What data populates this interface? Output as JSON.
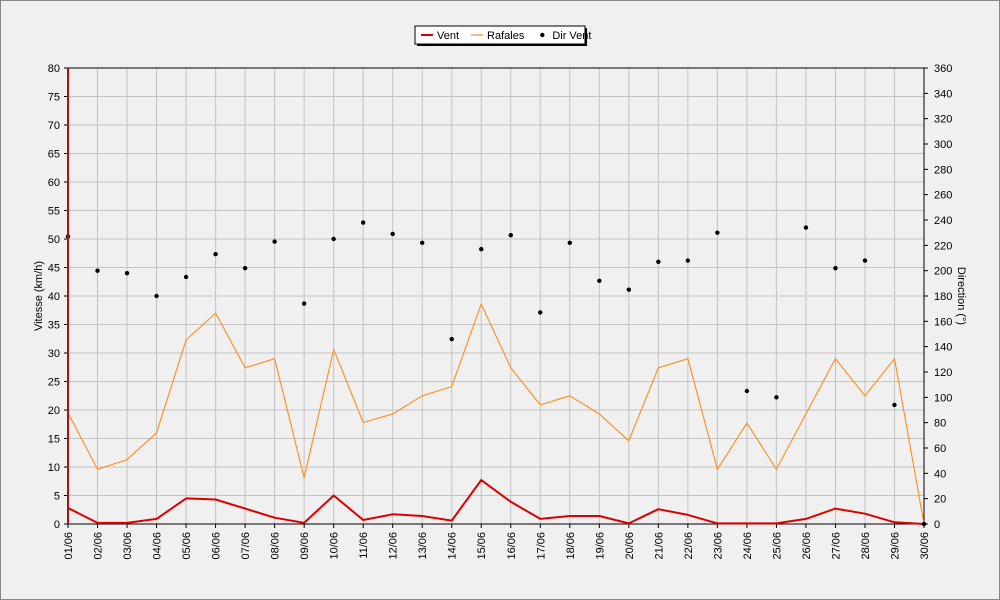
{
  "chart_data": {
    "type": "line",
    "x_categories": [
      "01/06",
      "02/06",
      "03/06",
      "04/06",
      "05/06",
      "06/06",
      "07/06",
      "08/06",
      "09/06",
      "10/06",
      "11/06",
      "12/06",
      "13/06",
      "14/06",
      "15/06",
      "16/06",
      "17/06",
      "18/06",
      "19/06",
      "20/06",
      "21/06",
      "22/06",
      "23/06",
      "24/06",
      "25/06",
      "26/06",
      "27/06",
      "28/06",
      "29/06",
      "30/06"
    ],
    "y_left_label": "Vitesse (km/h)",
    "y_left_range": [
      0,
      80
    ],
    "y_left_ticks": [
      0,
      5,
      10,
      15,
      20,
      25,
      30,
      35,
      40,
      45,
      50,
      55,
      60,
      65,
      70,
      75,
      80
    ],
    "y_right_label": "Direction (°)",
    "y_right_range": [
      0,
      360
    ],
    "y_right_ticks": [
      0,
      20,
      40,
      60,
      80,
      100,
      120,
      140,
      160,
      180,
      200,
      220,
      240,
      260,
      280,
      300,
      320,
      340,
      360
    ],
    "grid": true,
    "legend_position": "top-center",
    "series": [
      {
        "name": "Vent",
        "kind": "line",
        "axis": "left",
        "color": "#dd0000",
        "values": [
          2.8,
          0.2,
          0.2,
          0.9,
          4.5,
          4.3,
          2.7,
          1.1,
          0.2,
          5.0,
          0.7,
          1.7,
          1.4,
          0.6,
          7.7,
          3.9,
          0.9,
          1.4,
          1.4,
          0.1,
          2.6,
          1.6,
          0.1,
          0.1,
          0.1,
          0.9,
          2.7,
          1.8,
          0.3,
          0.0
        ]
      },
      {
        "name": "Rafales",
        "kind": "line",
        "axis": "left",
        "color": "#ff8c1a",
        "values": [
          19.5,
          9.6,
          11.3,
          16.0,
          32.3,
          37.0,
          27.4,
          29.0,
          8.1,
          30.6,
          17.8,
          19.3,
          22.5,
          24.1,
          38.6,
          27.4,
          20.9,
          22.5,
          19.3,
          14.6,
          27.4,
          29.0,
          9.6,
          17.7,
          9.6,
          19.3,
          29.0,
          22.5,
          29.0,
          0.0
        ]
      },
      {
        "name": "Dir Vent",
        "kind": "scatter",
        "axis": "right",
        "color": "#000000",
        "values": [
          227,
          200,
          198,
          180,
          195,
          213,
          202,
          223,
          174,
          225,
          238,
          229,
          222,
          146,
          217,
          228,
          167,
          222,
          192,
          185,
          207,
          208,
          230,
          105,
          100,
          234,
          202,
          208,
          94,
          0
        ]
      }
    ]
  }
}
